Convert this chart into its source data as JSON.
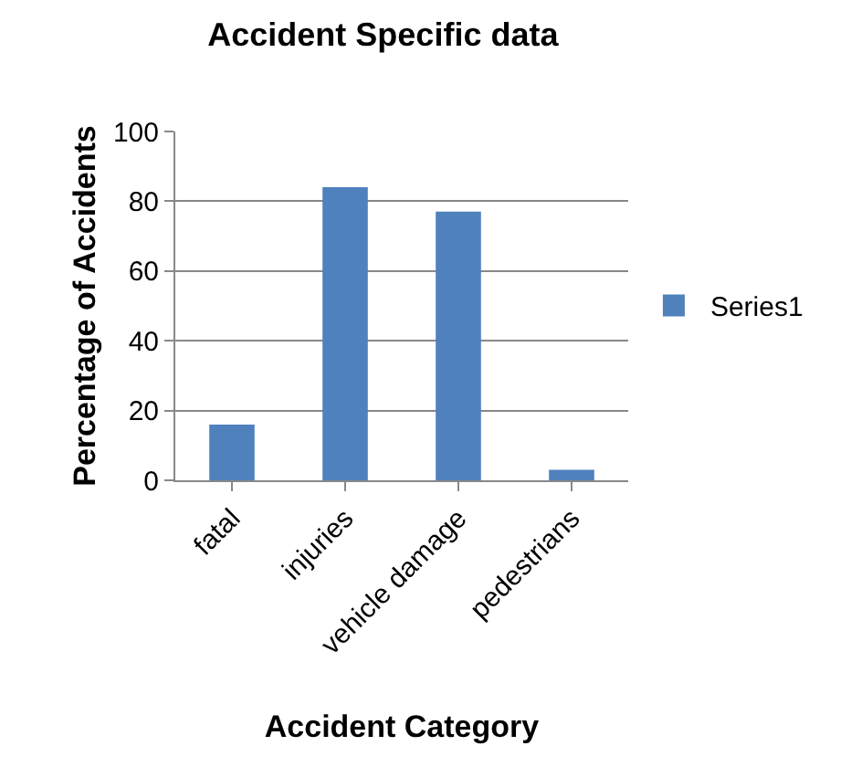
{
  "chart_data": {
    "type": "bar",
    "title": "Accident Specific data",
    "xlabel": "Accident Category",
    "ylabel": "Percentage of Accidents",
    "categories": [
      "fatal",
      "injuries",
      "vehicle damage",
      "pedestrians"
    ],
    "series": [
      {
        "name": "Series1",
        "color": "#4f81bd",
        "values": [
          16,
          84,
          77,
          3
        ]
      }
    ],
    "ylim": [
      0,
      100
    ],
    "yticks": [
      0,
      20,
      40,
      60,
      80,
      100
    ],
    "grid": "y",
    "legend": "right"
  }
}
